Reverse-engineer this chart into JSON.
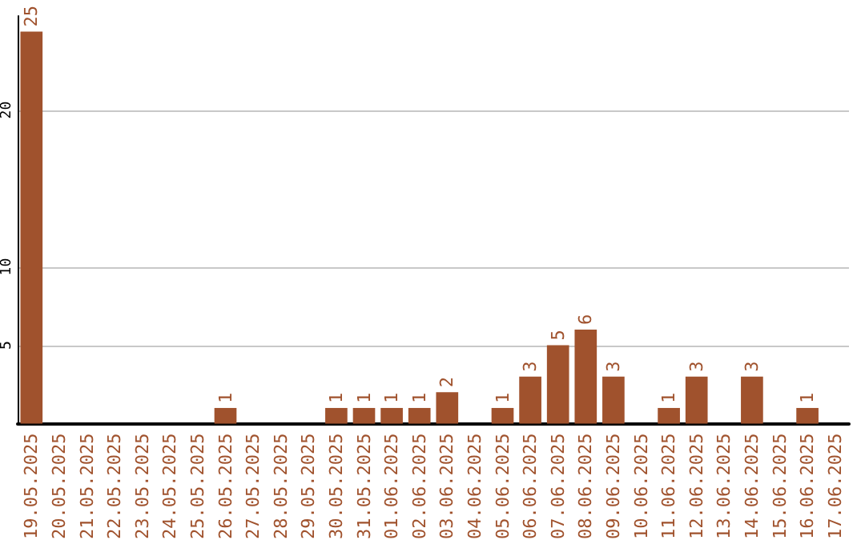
{
  "chart_data": {
    "type": "bar",
    "categories": [
      "19.05.2025",
      "20.05.2025",
      "21.05.2025",
      "22.05.2025",
      "23.05.2025",
      "24.05.2025",
      "25.05.2025",
      "26.05.2025",
      "27.05.2025",
      "28.05.2025",
      "29.05.2025",
      "30.05.2025",
      "31.05.2025",
      "01.06.2025",
      "02.06.2025",
      "03.06.2025",
      "04.06.2025",
      "05.06.2025",
      "06.06.2025",
      "07.06.2025",
      "08.06.2025",
      "09.06.2025",
      "10.06.2025",
      "11.06.2025",
      "12.06.2025",
      "13.06.2025",
      "14.06.2025",
      "15.06.2025",
      "16.06.2025",
      "17.06.2025"
    ],
    "values": [
      25,
      0,
      0,
      0,
      0,
      0,
      0,
      1,
      0,
      0,
      0,
      1,
      1,
      1,
      1,
      2,
      0,
      1,
      3,
      5,
      6,
      3,
      0,
      1,
      3,
      0,
      3,
      0,
      1,
      0
    ],
    "value_labels": [
      "25",
      null,
      null,
      null,
      null,
      null,
      null,
      "1",
      null,
      null,
      null,
      "1",
      "1",
      "1",
      "1",
      "2",
      null,
      "1",
      "3",
      "5",
      "6",
      "3",
      null,
      "1",
      "3",
      null,
      "3",
      null,
      "1",
      null
    ],
    "color": "#a0522d",
    "ylim": [
      0,
      26
    ],
    "yticks": [
      5,
      10,
      20
    ],
    "grid": "y"
  }
}
